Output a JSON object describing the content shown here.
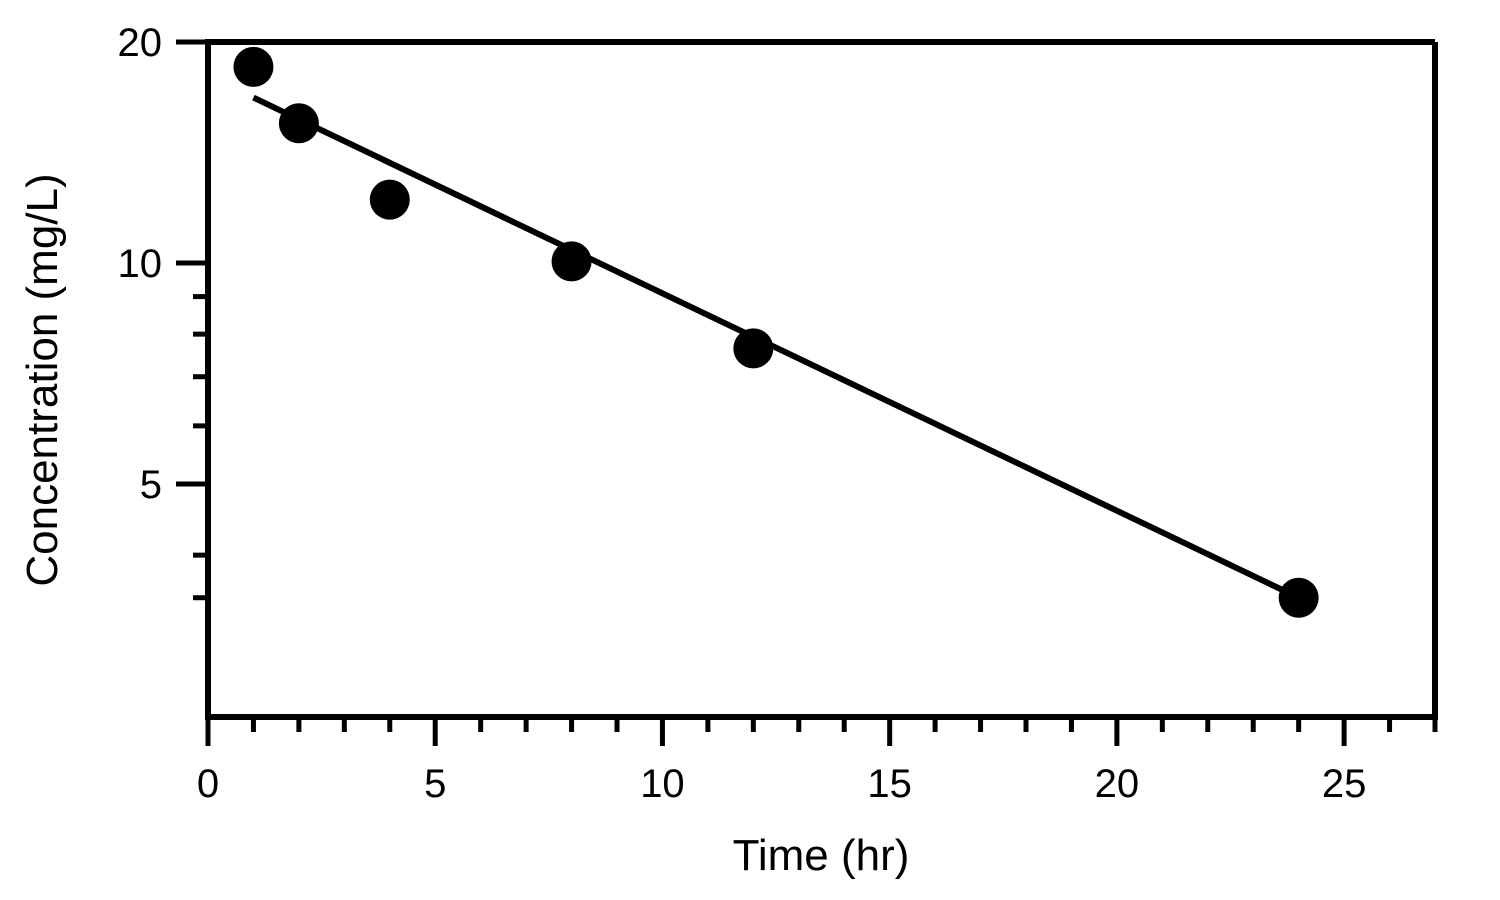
{
  "chart_data": {
    "type": "scatter",
    "title": "",
    "xlabel": "Time (hr)",
    "ylabel": "Concentration (mg/L)",
    "x_scale": "linear",
    "y_scale": "log",
    "xlim": [
      0,
      27
    ],
    "ylim": [
      2.8,
      20
    ],
    "x_ticks": [
      0,
      5,
      10,
      15,
      20,
      25
    ],
    "x_tick_labels": [
      "0",
      "5",
      "10",
      "15",
      "20",
      "25"
    ],
    "x_minor_ticks": [
      1,
      2,
      3,
      4,
      6,
      7,
      8,
      9,
      11,
      12,
      13,
      14,
      16,
      17,
      18,
      19,
      21,
      22,
      23,
      24,
      26,
      27
    ],
    "y_ticks": [
      5,
      10,
      20
    ],
    "y_tick_labels": [
      "5",
      "10",
      "20"
    ],
    "y_minor_ticks": [
      3.5,
      4,
      6,
      7,
      8,
      9
    ],
    "grid": false,
    "legend": "none",
    "colors": {
      "marks": "#000000",
      "background": "#ffffff"
    },
    "series": [
      {
        "type": "scatter",
        "x": [
          1,
          2,
          4,
          8,
          12,
          24
        ],
        "y": [
          18.5,
          15.5,
          12.2,
          10.05,
          7.65,
          3.5
        ]
      },
      {
        "type": "line",
        "x": [
          1,
          24
        ],
        "y": [
          16.8,
          3.5
        ]
      }
    ]
  }
}
